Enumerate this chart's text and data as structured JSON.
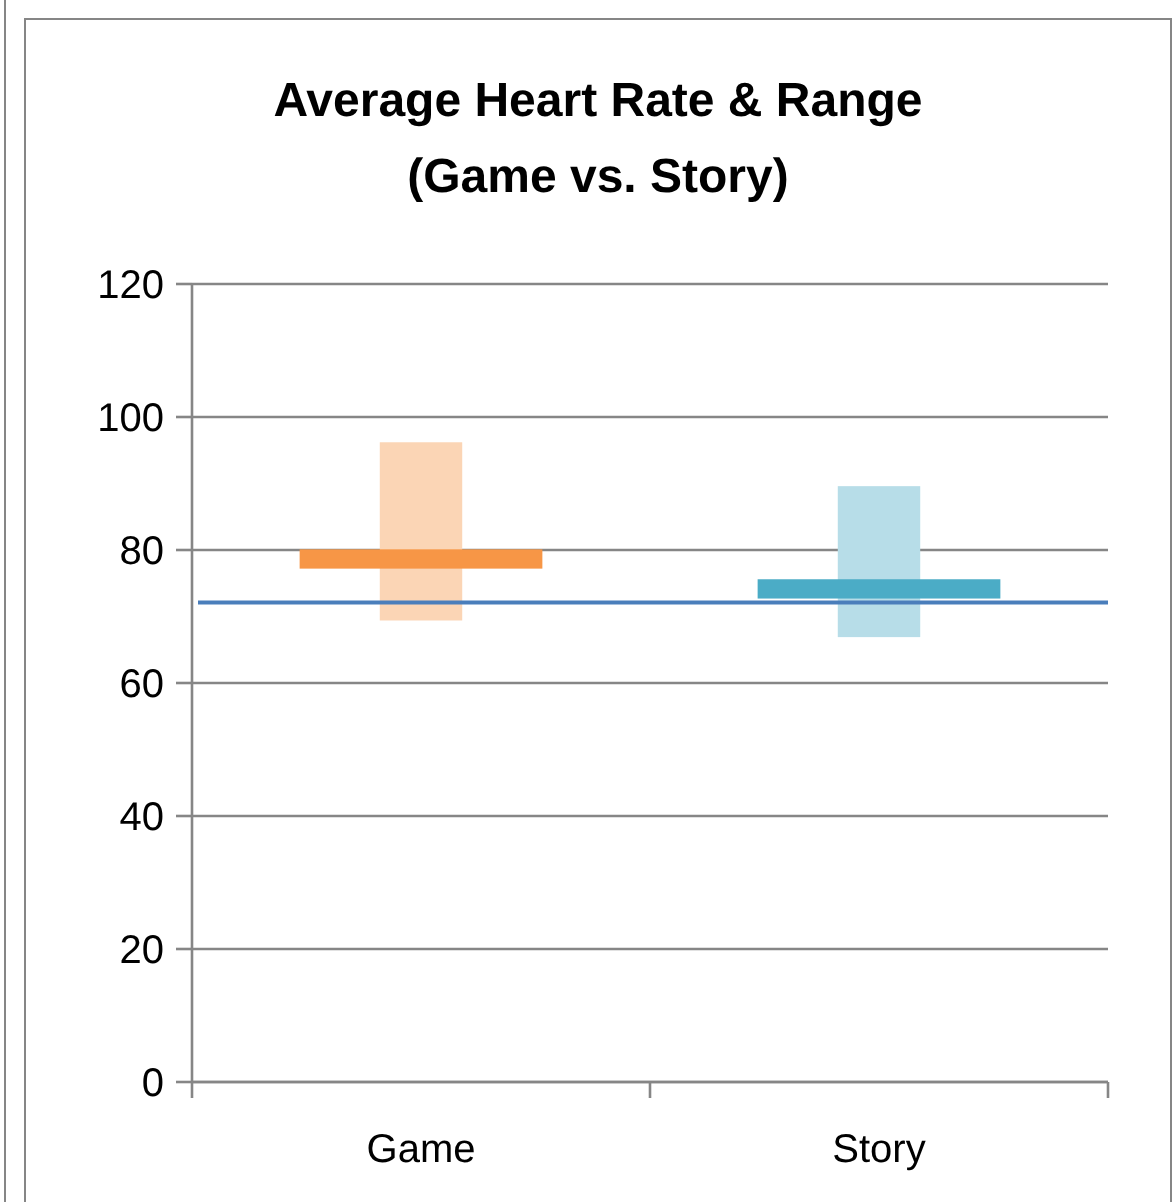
{
  "chart_data": {
    "type": "bar",
    "title": "Average Heart Rate & Range\n(Game vs. Story)",
    "categories": [
      "Game",
      "Story"
    ],
    "series": [
      {
        "base": [
          69.4,
          66.9
        ],
        "values": [
          26.8,
          22.7
        ],
        "colors": [
          "#fbd5b5",
          "#b7dde8"
        ]
      },
      {
        "base": [
          77.2,
          72.7
        ],
        "values": [
          2.9,
          2.9
        ],
        "colors": [
          "#f79646",
          "#4bacc6"
        ]
      }
    ],
    "ylim": [
      0,
      120
    ],
    "yticks": [
      0,
      20,
      40,
      60,
      80,
      100,
      120
    ],
    "grid": "y",
    "ref_lines": [
      {
        "axis": "y",
        "value": 72.1,
        "color": "#4a7ebb"
      }
    ]
  }
}
